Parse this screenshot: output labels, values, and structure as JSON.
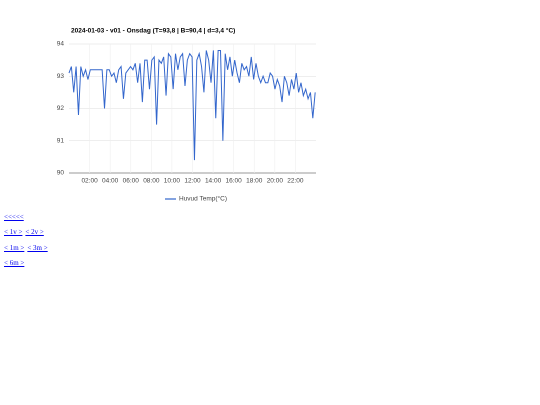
{
  "chart_data": {
    "type": "line",
    "title": "2024-01-03 - v01 - Onsdag (T=93,8 | B=90,4 | d=3,4 °C)",
    "x": [
      0,
      0.23,
      0.46,
      0.69,
      0.92,
      1.15,
      1.38,
      1.61,
      1.84,
      2.07,
      2.3,
      2.53,
      2.76,
      2.99,
      3.22,
      3.45,
      3.68,
      3.91,
      4.14,
      4.37,
      4.6,
      4.83,
      5.06,
      5.29,
      5.52,
      5.75,
      5.98,
      6.21,
      6.44,
      6.67,
      6.9,
      7.13,
      7.36,
      7.59,
      7.82,
      8.05,
      8.28,
      8.51,
      8.74,
      8.97,
      9.2,
      9.43,
      9.66,
      9.89,
      10.12,
      10.35,
      10.58,
      10.81,
      11.04,
      11.27,
      11.5,
      11.73,
      11.96,
      12.19,
      12.42,
      12.65,
      12.88,
      13.11,
      13.34,
      13.57,
      13.8,
      14.03,
      14.26,
      14.49,
      14.72,
      14.95,
      15.18,
      15.41,
      15.64,
      15.87,
      16.1,
      16.33,
      16.56,
      16.79,
      17.02,
      17.25,
      17.48,
      17.71,
      17.94,
      18.17,
      18.4,
      18.63,
      18.86,
      19.09,
      19.32,
      19.55,
      19.78,
      20.01,
      20.24,
      20.47,
      20.7,
      20.93,
      21.16,
      21.39,
      21.62,
      21.85,
      22.08,
      22.31,
      22.54,
      22.77,
      23,
      23.23,
      23.46,
      23.69,
      23.92
    ],
    "series": [
      {
        "name": "Huvud Temp(°C)",
        "color": "#3366cc",
        "values": [
          93.1,
          93.3,
          92.5,
          93.3,
          91.8,
          93.3,
          93.0,
          93.2,
          92.9,
          93.2,
          93.2,
          93.2,
          93.2,
          93.2,
          93.2,
          92.0,
          93.2,
          93.2,
          93.0,
          93.1,
          92.8,
          93.2,
          93.3,
          92.3,
          93.1,
          93.2,
          93.3,
          93.2,
          93.4,
          92.8,
          93.4,
          92.2,
          93.5,
          93.5,
          92.6,
          93.5,
          93.6,
          91.5,
          93.5,
          93.4,
          93.6,
          92.4,
          93.7,
          93.6,
          92.6,
          93.7,
          93.2,
          93.6,
          93.7,
          92.7,
          93.5,
          93.7,
          93.6,
          90.4,
          93.5,
          93.7,
          93.3,
          92.5,
          93.8,
          93.5,
          92.8,
          93.8,
          91.7,
          93.8,
          93.8,
          91.0,
          93.7,
          93.2,
          93.6,
          93.0,
          93.5,
          93.1,
          92.8,
          93.4,
          93.2,
          93.3,
          93.0,
          93.6,
          92.9,
          93.4,
          93.0,
          92.8,
          93.0,
          92.8,
          92.8,
          93.1,
          93.0,
          92.6,
          92.9,
          92.7,
          92.2,
          93.0,
          92.8,
          92.4,
          92.9,
          92.6,
          93.1,
          92.5,
          92.8,
          92.4,
          92.6,
          92.3,
          92.5,
          91.7,
          92.5
        ]
      }
    ],
    "xlim": [
      0,
      24
    ],
    "xticks": [
      {
        "value": 2,
        "label": "02:00"
      },
      {
        "value": 4,
        "label": "04:00"
      },
      {
        "value": 6,
        "label": "06:00"
      },
      {
        "value": 8,
        "label": "08:00"
      },
      {
        "value": 10,
        "label": "10:00"
      },
      {
        "value": 12,
        "label": "12:00"
      },
      {
        "value": 14,
        "label": "14:00"
      },
      {
        "value": 16,
        "label": "16:00"
      },
      {
        "value": 18,
        "label": "18:00"
      },
      {
        "value": 20,
        "label": "20:00"
      },
      {
        "value": 22,
        "label": "22:00"
      }
    ],
    "ylim": [
      90,
      94
    ],
    "yticks": [
      90,
      91,
      92,
      93,
      94
    ],
    "grid": true,
    "legend": "bottom"
  },
  "links": [
    [
      "<<<<<"
    ],
    [
      "< 1v >",
      "< 2v >"
    ],
    [
      "< 1m >",
      "< 3m >"
    ],
    [
      "< 6m >"
    ]
  ]
}
